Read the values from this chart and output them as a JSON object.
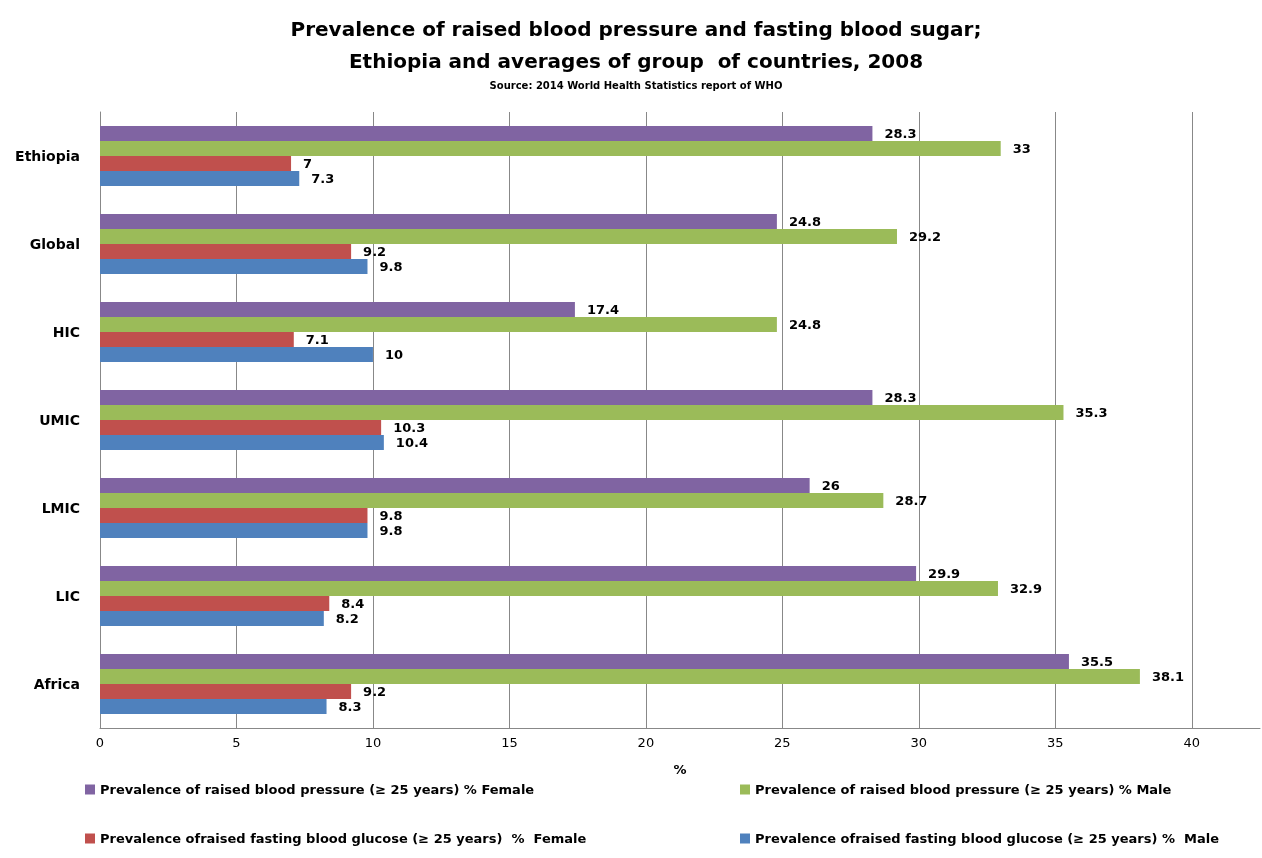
{
  "chart_data": {
    "type": "bar",
    "orientation": "horizontal",
    "title": "Prevalence of raised blood pressure and fasting blood sugar;\nEthiopia and averages of group  of countries, 2008",
    "annotations": [
      "Source: 2014 World Health Statistics report of WHO"
    ],
    "xlabel": "%",
    "categories": [
      "Ethiopia",
      "Global",
      "HIC",
      "UMIC",
      "LMIC",
      "LIC",
      "Africa"
    ],
    "series": [
      {
        "name": "Prevalence of raised blood pressure (≥ 25 years) % Female",
        "color": "#8064a2",
        "values": [
          28.3,
          24.8,
          17.4,
          28.3,
          26,
          29.9,
          35.5
        ]
      },
      {
        "name": "Prevalence of raised blood pressure (≥ 25 years) % Male",
        "color": "#9bbb59",
        "values": [
          33,
          29.2,
          24.8,
          35.3,
          28.7,
          32.9,
          38.1
        ]
      },
      {
        "name": "Prevalence ofraised fasting blood glucose (≥ 25 years)  %  Female",
        "color": "#c0504d",
        "values": [
          7,
          9.2,
          7.1,
          10.3,
          9.8,
          8.4,
          9.2
        ]
      },
      {
        "name": "Prevalence ofraised fasting blood glucose (≥ 25 years) %  Male",
        "color": "#4f81bd",
        "values": [
          7.3,
          9.8,
          10,
          10.4,
          9.8,
          8.2,
          8.3
        ]
      }
    ],
    "xlim": [
      0,
      42.5
    ],
    "xticks": [
      0,
      5,
      10,
      15,
      20,
      25,
      30,
      35,
      40
    ],
    "grid": "x",
    "data_labels": true,
    "legend": "bottom"
  }
}
